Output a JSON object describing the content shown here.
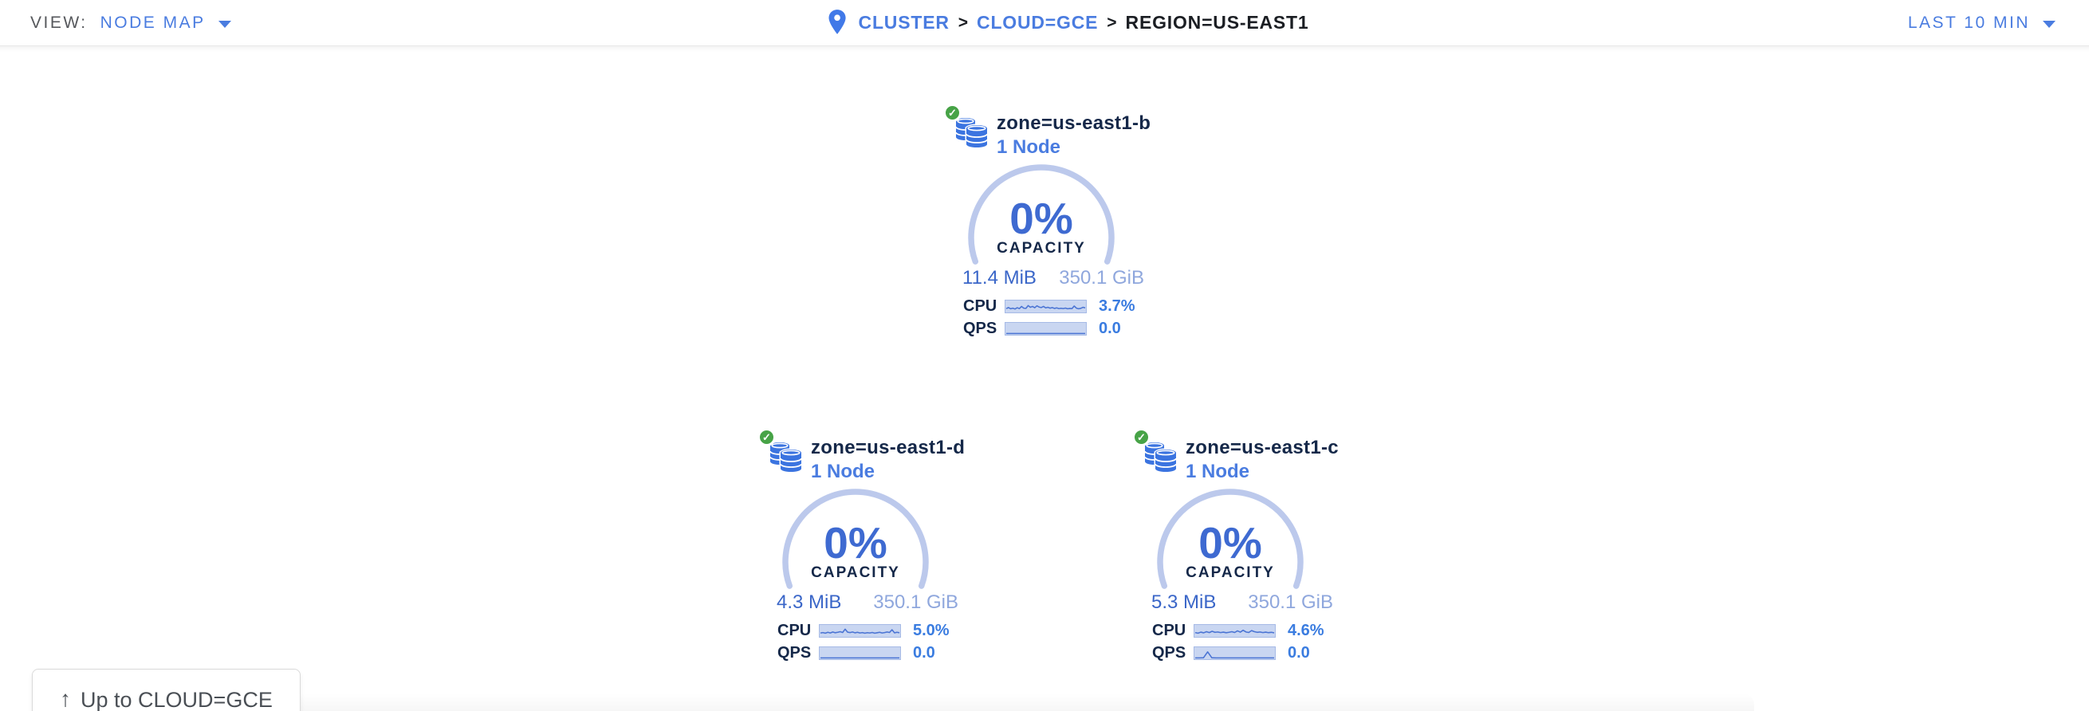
{
  "topbar": {
    "view_label": "VIEW:",
    "view_value": "NODE MAP",
    "breadcrumb": {
      "cluster": "CLUSTER",
      "sep1": ">",
      "cloud": "CLOUD=GCE",
      "sep2": ">",
      "region": "REGION=US-EAST1"
    },
    "time_range": "LAST 10 MIN"
  },
  "zones": [
    {
      "name": "zone=us-east1-b",
      "node_count": "1 Node",
      "status": "healthy",
      "status_glyph": "✓",
      "capacity_pct": "0%",
      "capacity_label": "CAPACITY",
      "capacity_used": "11.4 MiB",
      "capacity_total": "350.1 GiB",
      "cpu_label": "CPU",
      "cpu_value": "3.7%",
      "qps_label": "QPS",
      "qps_value": "0.0",
      "cpu_spark": [
        0.3,
        0.42,
        0.28,
        0.35,
        0.25,
        0.4,
        0.3,
        0.55,
        0.35,
        0.33,
        0.65,
        0.45,
        0.55,
        0.4,
        0.62,
        0.48,
        0.42,
        0.55,
        0.38,
        0.45,
        0.35,
        0.42,
        0.32,
        0.38,
        0.3,
        0.34,
        0.3,
        0.36,
        0.28,
        0.32,
        0.3,
        0.6,
        0.35,
        0.28,
        0.33,
        0.45,
        0.38
      ],
      "qps_spark": [
        0,
        0,
        0,
        0,
        0,
        0,
        0,
        0,
        0,
        0,
        0,
        0,
        0,
        0,
        0,
        0,
        0,
        0,
        0,
        0
      ]
    },
    {
      "name": "zone=us-east1-d",
      "node_count": "1 Node",
      "status": "healthy",
      "status_glyph": "✓",
      "capacity_pct": "0%",
      "capacity_label": "CAPACITY",
      "capacity_used": "4.3 MiB",
      "capacity_total": "350.1 GiB",
      "cpu_label": "CPU",
      "cpu_value": "5.0%",
      "qps_label": "QPS",
      "qps_value": "0.0",
      "cpu_spark": [
        0.3,
        0.35,
        0.28,
        0.38,
        0.3,
        0.42,
        0.33,
        0.38,
        0.45,
        0.36,
        0.75,
        0.4,
        0.35,
        0.42,
        0.32,
        0.38,
        0.3,
        0.35,
        0.28,
        0.34,
        0.3,
        0.36,
        0.28,
        0.33,
        0.38,
        0.3,
        0.35,
        0.42,
        0.36,
        0.68,
        0.32,
        0.38,
        0.33
      ],
      "qps_spark": [
        0,
        0,
        0,
        0,
        0,
        0,
        0,
        0,
        0,
        0,
        0,
        0,
        0,
        0,
        0,
        0,
        0,
        0,
        0,
        0
      ]
    },
    {
      "name": "zone=us-east1-c",
      "node_count": "1 Node",
      "status": "healthy",
      "status_glyph": "✓",
      "capacity_pct": "0%",
      "capacity_label": "CAPACITY",
      "capacity_used": "5.3 MiB",
      "capacity_total": "350.1 GiB",
      "cpu_label": "CPU",
      "cpu_value": "4.6%",
      "qps_label": "QPS",
      "qps_value": "0.0",
      "cpu_spark": [
        0.35,
        0.28,
        0.4,
        0.32,
        0.45,
        0.35,
        0.5,
        0.38,
        0.42,
        0.35,
        0.4,
        0.33,
        0.38,
        0.45,
        0.36,
        0.55,
        0.4,
        0.62,
        0.42,
        0.36,
        0.58,
        0.45,
        0.38,
        0.42,
        0.35,
        0.4,
        0.34,
        0.38,
        0.32
      ],
      "qps_spark": [
        0,
        0,
        0.02,
        0.7,
        0.02,
        0,
        0,
        0,
        0,
        0,
        0,
        0,
        0,
        0,
        0,
        0,
        0,
        0,
        0,
        0
      ]
    }
  ],
  "up_button_label": "Up to CLOUD=GCE",
  "colors": {
    "accent_blue": "#4a7ce0",
    "dark_navy": "#152849",
    "value_blue": "#3a66c8",
    "light_blue": "#8fa7dd",
    "arc_blue": "#bcc9ec",
    "spark_fill": "#c9d6f1",
    "spark_border": "#a6bae6",
    "spark_line": "#4a74d4",
    "healthy_green": "#47a347"
  }
}
